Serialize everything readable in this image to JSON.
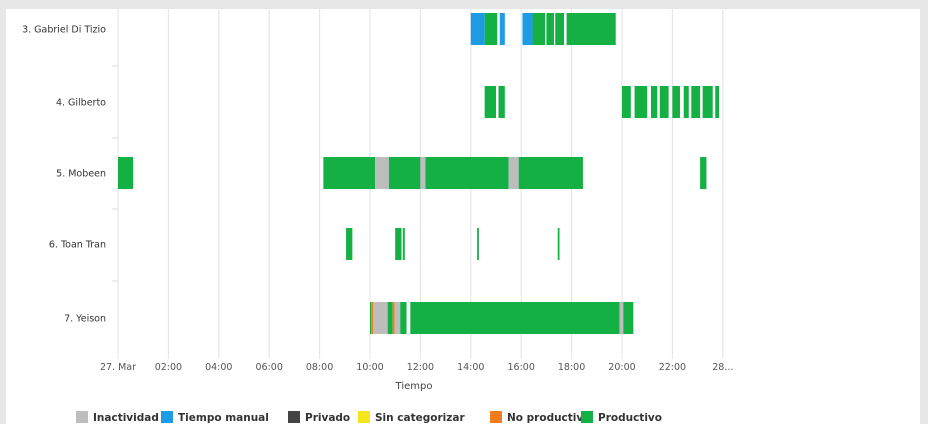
{
  "chart_data": {
    "type": "timeline",
    "xlabel": "Tiempo",
    "x_ticks": [
      "27. Mar",
      "02:00",
      "04:00",
      "06:00",
      "08:00",
      "10:00",
      "12:00",
      "14:00",
      "16:00",
      "18:00",
      "20:00",
      "22:00",
      "28..."
    ],
    "x_range_hours": [
      0,
      24.3
    ],
    "grid": true,
    "legend_position": "bottom",
    "categories": [
      {
        "key": "inactividad",
        "name": "Inactividad",
        "color": "#bdbdbd"
      },
      {
        "key": "manual",
        "name": "Tiempo manual",
        "color": "#1e9be5"
      },
      {
        "key": "privado",
        "name": "Privado",
        "color": "#444444"
      },
      {
        "key": "sincat",
        "name": "Sin categorizar",
        "color": "#f5e51b"
      },
      {
        "key": "noprod",
        "name": "No productivo",
        "color": "#f57c1f"
      },
      {
        "key": "prod",
        "name": "Productivo",
        "color": "#14b043"
      }
    ],
    "rows": [
      {
        "name": "3. Gabriel Di Tizio",
        "segments": [
          {
            "start": 14.0,
            "end": 14.55,
            "cat": "manual"
          },
          {
            "start": 14.55,
            "end": 15.05,
            "cat": "prod"
          },
          {
            "start": 15.15,
            "end": 15.35,
            "cat": "manual"
          },
          {
            "start": 16.05,
            "end": 16.45,
            "cat": "manual"
          },
          {
            "start": 16.45,
            "end": 16.95,
            "cat": "prod"
          },
          {
            "start": 17.0,
            "end": 17.3,
            "cat": "prod"
          },
          {
            "start": 17.35,
            "end": 17.7,
            "cat": "prod"
          },
          {
            "start": 17.8,
            "end": 19.75,
            "cat": "prod"
          }
        ]
      },
      {
        "name": "4. Gilberto",
        "segments": [
          {
            "start": 14.55,
            "end": 15.0,
            "cat": "prod"
          },
          {
            "start": 15.1,
            "end": 15.35,
            "cat": "prod"
          },
          {
            "start": 20.0,
            "end": 20.35,
            "cat": "prod"
          },
          {
            "start": 20.5,
            "end": 21.0,
            "cat": "prod"
          },
          {
            "start": 21.15,
            "end": 21.4,
            "cat": "prod"
          },
          {
            "start": 21.5,
            "end": 21.85,
            "cat": "prod"
          },
          {
            "start": 22.0,
            "end": 22.3,
            "cat": "prod"
          },
          {
            "start": 22.45,
            "end": 22.65,
            "cat": "prod"
          },
          {
            "start": 22.75,
            "end": 23.1,
            "cat": "prod"
          },
          {
            "start": 23.2,
            "end": 23.6,
            "cat": "prod"
          },
          {
            "start": 23.7,
            "end": 23.85,
            "cat": "prod"
          }
        ]
      },
      {
        "name": "5. Mobeen",
        "segments": [
          {
            "start": 0.0,
            "end": 0.6,
            "cat": "prod"
          },
          {
            "start": 8.15,
            "end": 10.2,
            "cat": "prod"
          },
          {
            "start": 10.2,
            "end": 10.75,
            "cat": "inactividad"
          },
          {
            "start": 10.75,
            "end": 12.0,
            "cat": "prod"
          },
          {
            "start": 12.0,
            "end": 12.2,
            "cat": "inactividad"
          },
          {
            "start": 12.2,
            "end": 15.5,
            "cat": "prod"
          },
          {
            "start": 15.5,
            "end": 15.9,
            "cat": "inactividad"
          },
          {
            "start": 15.9,
            "end": 18.45,
            "cat": "prod"
          },
          {
            "start": 23.1,
            "end": 23.35,
            "cat": "prod"
          }
        ]
      },
      {
        "name": "6. Toan Tran",
        "segments": [
          {
            "start": 9.05,
            "end": 9.3,
            "cat": "prod"
          },
          {
            "start": 11.0,
            "end": 11.25,
            "cat": "prod"
          },
          {
            "start": 11.3,
            "end": 11.38,
            "cat": "prod"
          },
          {
            "start": 14.25,
            "end": 14.32,
            "cat": "prod"
          },
          {
            "start": 17.45,
            "end": 17.52,
            "cat": "prod"
          }
        ]
      },
      {
        "name": "7. Yeison",
        "segments": [
          {
            "start": 10.0,
            "end": 10.05,
            "cat": "prod"
          },
          {
            "start": 10.05,
            "end": 10.12,
            "cat": "noprod"
          },
          {
            "start": 10.12,
            "end": 10.7,
            "cat": "inactividad"
          },
          {
            "start": 10.7,
            "end": 10.9,
            "cat": "prod"
          },
          {
            "start": 10.9,
            "end": 10.98,
            "cat": "noprod"
          },
          {
            "start": 10.98,
            "end": 11.2,
            "cat": "inactividad"
          },
          {
            "start": 11.2,
            "end": 11.45,
            "cat": "prod"
          },
          {
            "start": 11.6,
            "end": 19.9,
            "cat": "prod"
          },
          {
            "start": 19.9,
            "end": 20.05,
            "cat": "inactividad"
          },
          {
            "start": 20.05,
            "end": 20.45,
            "cat": "prod"
          }
        ]
      }
    ]
  }
}
